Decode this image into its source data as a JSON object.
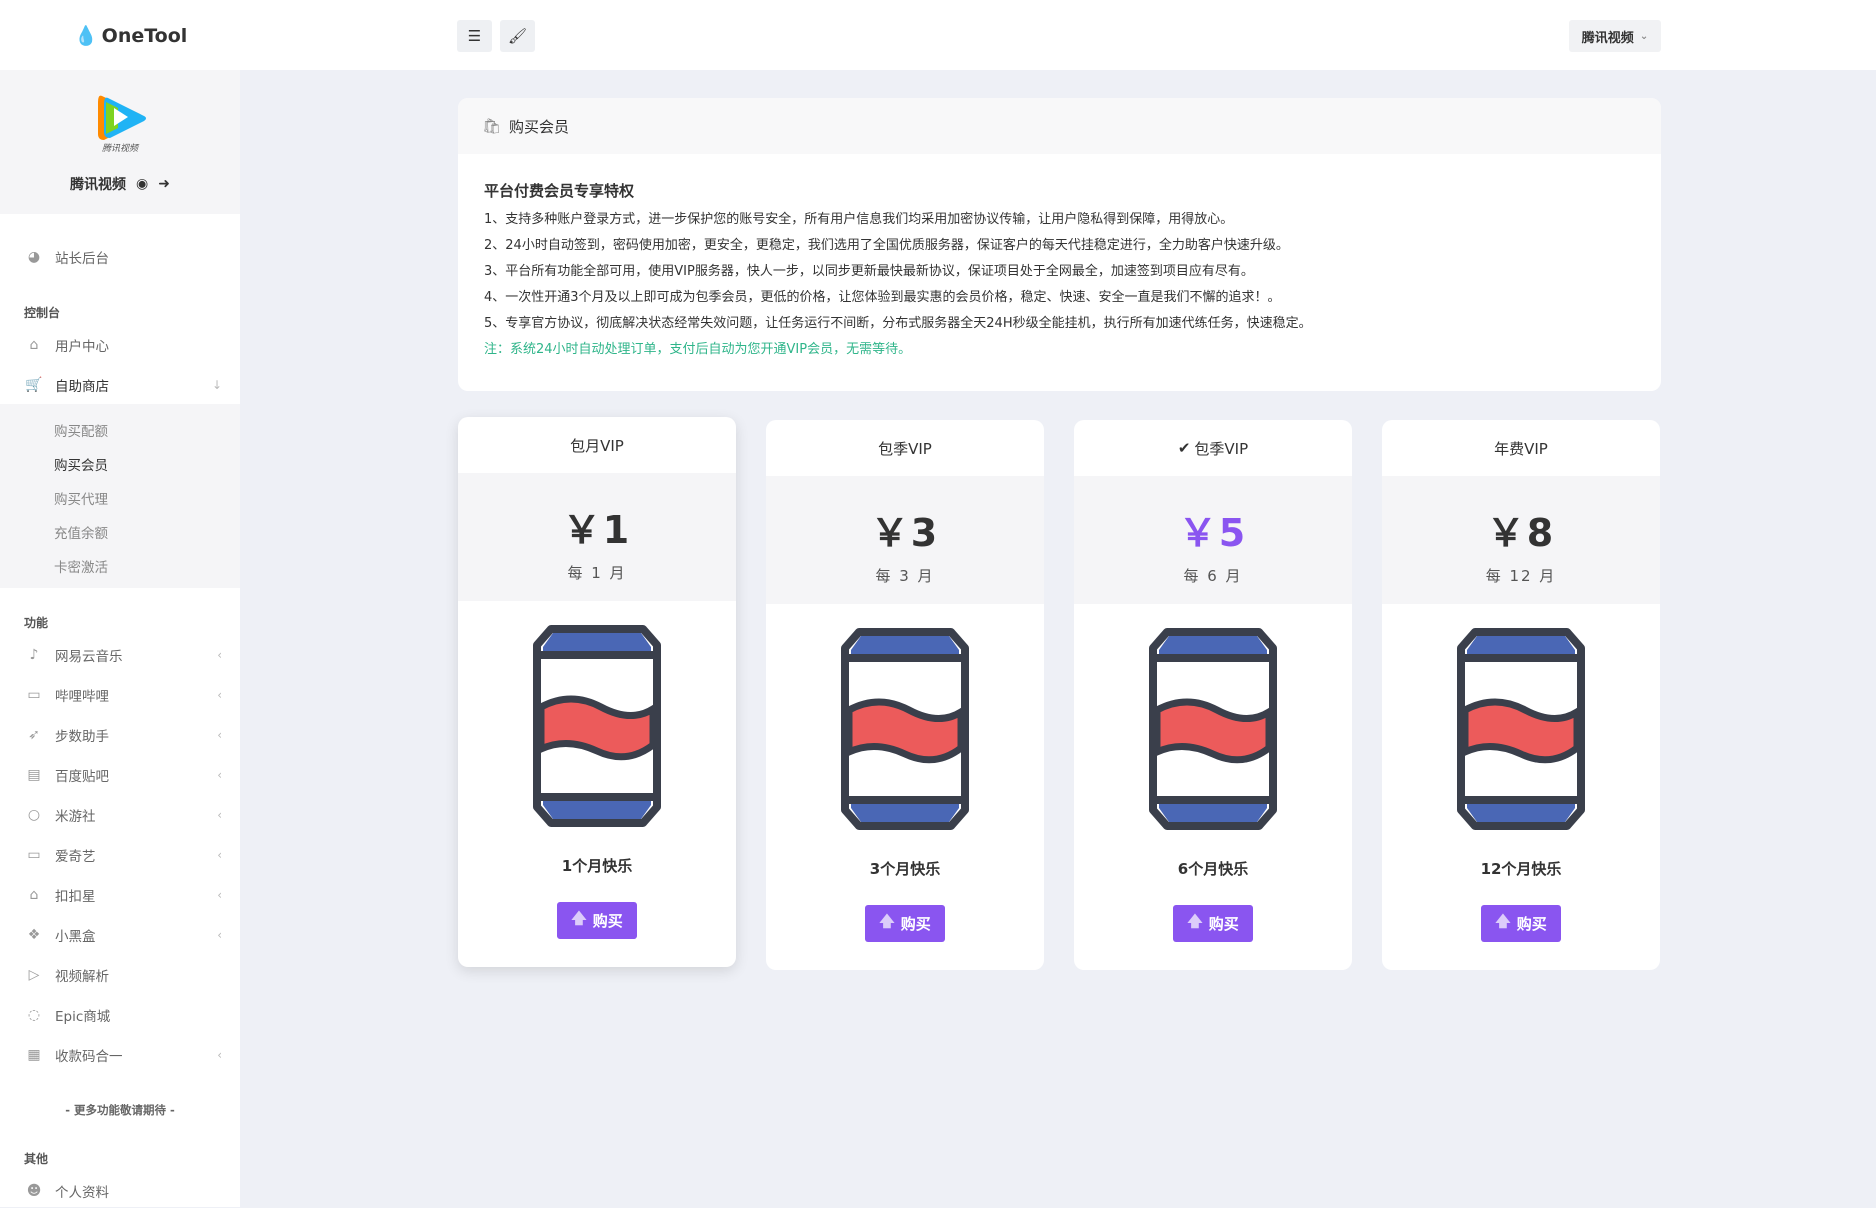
{
  "header": {
    "brand": "OneTool",
    "menu_icon": "hamburger-icon",
    "theme_icon": "brush-icon",
    "site_select": "腾讯视频"
  },
  "profile": {
    "name": "腾讯视频",
    "logo_text": "腾讯视频"
  },
  "sidebar": {
    "top_item": "站长后台",
    "section_console": "控制台",
    "user_center": "用户中心",
    "shop": "自助商店",
    "shop_sub": [
      "购买配额",
      "购买会员",
      "购买代理",
      "充值余额",
      "卡密激活"
    ],
    "section_features": "功能",
    "features": [
      {
        "label": "网易云音乐",
        "icon": "music-note-icon",
        "arrow": true
      },
      {
        "label": "哔哩哔哩",
        "icon": "video-camera-icon",
        "arrow": true
      },
      {
        "label": "步数助手",
        "icon": "rocket-icon",
        "arrow": true
      },
      {
        "label": "百度贴吧",
        "icon": "book-icon",
        "arrow": true
      },
      {
        "label": "米游社",
        "icon": "lightbulb-icon",
        "arrow": true
      },
      {
        "label": "爱奇艺",
        "icon": "monitor-icon",
        "arrow": true
      },
      {
        "label": "扣扣星",
        "icon": "graduation-cap-icon",
        "arrow": true
      },
      {
        "label": "小黑盒",
        "icon": "dropbox-icon",
        "arrow": true
      },
      {
        "label": "视频解析",
        "icon": "play-icon",
        "arrow": false
      },
      {
        "label": "Epic商城",
        "icon": "gamepad-icon",
        "arrow": false
      },
      {
        "label": "收款码合一",
        "icon": "qrcode-icon",
        "arrow": true
      }
    ],
    "more": "- 更多功能敬请期待 -",
    "section_other": "其他",
    "profile_item": "个人资料"
  },
  "notice": {
    "header": "购买会员",
    "title": "平台付费会员专享特权",
    "lines": [
      "1、支持多种账户登录方式，进一步保护您的账号安全，所有用户信息我们均采用加密协议传输，让用户隐私得到保障，用得放心。",
      "2、24小时自动签到，密码使用加密，更安全，更稳定，我们选用了全国优质服务器，保证客户的每天代挂稳定进行，全力助客户快速升级。",
      "3、平台所有功能全部可用，使用VIP服务器，快人一步，以同步更新最快最新协议，保证项目处于全网最全，加速签到项目应有尽有。",
      "4、一次性开通3个月及以上即可成为包季会员，更低的价格，让您体验到最实惠的会员价格，稳定、快速、安全一直是我们不懈的追求！。",
      "5、专享官方协议，彻底解决状态经常失效问题，让任务运行不间断，分布式服务器全天24H秒级全能挂机，执行所有加速代练任务，快速稳定。"
    ],
    "note": "注：系统24小时自动处理订单，支付后自动为您开通VIP会员，无需等待。"
  },
  "plans": [
    {
      "title": "包月VIP",
      "price": "￥1",
      "period": "每 1 月",
      "name": "1个月快乐",
      "button": "购买",
      "selected": false
    },
    {
      "title": "包季VIP",
      "price": "￥3",
      "period": "每 3 月",
      "name": "3个月快乐",
      "button": "购买",
      "selected": false
    },
    {
      "title": "包季VIP",
      "price": "￥5",
      "period": "每 6 月",
      "name": "6个月快乐",
      "button": "购买",
      "selected": true
    },
    {
      "title": "年费VIP",
      "price": "￥8",
      "period": "每 12 月",
      "name": "12个月快乐",
      "button": "购买",
      "selected": false
    }
  ],
  "colors": {
    "accent": "#8a55f0",
    "note": "#2fb58a",
    "can_blue": "#4a67b5",
    "can_red": "#ec5b5b",
    "can_outline": "#3a3f4b"
  }
}
